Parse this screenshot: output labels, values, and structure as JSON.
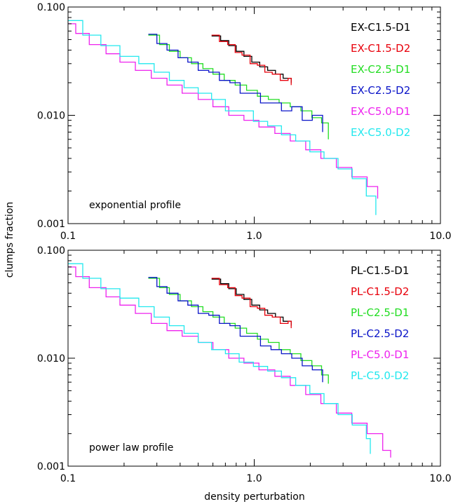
{
  "figure": {
    "xlabel": "density perturbation",
    "ylabel": "clumps fraction"
  },
  "chart_data": [
    {
      "type": "line",
      "step": true,
      "annotation": "exponential profile",
      "xscale": "log",
      "yscale": "log",
      "xlim": [
        0.1,
        10.0
      ],
      "ylim": [
        0.001,
        0.1
      ],
      "xticks": [
        {
          "v": 0.1,
          "label": "0.1"
        },
        {
          "v": 1.0,
          "label": "1.0"
        },
        {
          "v": 10.0,
          "label": "10.0"
        }
      ],
      "yticks": [
        {
          "v": 0.001,
          "label": "0.001"
        },
        {
          "v": 0.01,
          "label": "0.010"
        },
        {
          "v": 0.1,
          "label": "0.100"
        }
      ],
      "legend_position": "top-right",
      "series": [
        {
          "name": "EX-C1.5-D1",
          "color": "#000000",
          "x": [
            0.59,
            0.66,
            0.73,
            0.8,
            0.88,
            0.97,
            1.07,
            1.18,
            1.3,
            1.43,
            1.58
          ],
          "y": [
            0.054,
            0.049,
            0.044,
            0.039,
            0.035,
            0.031,
            0.028,
            0.026,
            0.024,
            0.022,
            0.02
          ]
        },
        {
          "name": "EX-C1.5-D2",
          "color": "#e8000b",
          "x": [
            0.59,
            0.65,
            0.72,
            0.79,
            0.86,
            0.95,
            1.04,
            1.14,
            1.25,
            1.38,
            1.52,
            1.58
          ],
          "y": [
            0.055,
            0.048,
            0.045,
            0.038,
            0.036,
            0.03,
            0.029,
            0.025,
            0.024,
            0.021,
            0.022,
            0.019
          ]
        },
        {
          "name": "EX-C2.5-D1",
          "color": "#22dd22",
          "x": [
            0.27,
            0.31,
            0.35,
            0.4,
            0.46,
            0.53,
            0.6,
            0.69,
            0.79,
            0.91,
            1.04,
            1.19,
            1.36,
            1.56,
            1.78,
            2.04,
            2.3,
            2.5
          ],
          "y": [
            0.055,
            0.045,
            0.039,
            0.034,
            0.03,
            0.027,
            0.024,
            0.021,
            0.019,
            0.017,
            0.015,
            0.014,
            0.013,
            0.012,
            0.011,
            0.0095,
            0.0085,
            0.006
          ]
        },
        {
          "name": "EX-C2.5-D2",
          "color": "#0a14c8",
          "x": [
            0.27,
            0.3,
            0.34,
            0.39,
            0.44,
            0.5,
            0.57,
            0.65,
            0.74,
            0.84,
            0.95,
            1.08,
            1.23,
            1.4,
            1.59,
            1.81,
            2.05,
            2.33
          ],
          "y": [
            0.056,
            0.046,
            0.04,
            0.034,
            0.031,
            0.026,
            0.025,
            0.021,
            0.02,
            0.016,
            0.016,
            0.013,
            0.013,
            0.011,
            0.012,
            0.009,
            0.01,
            0.007
          ]
        },
        {
          "name": "EX-C5.0-D1",
          "color": "#ee22ee",
          "x": [
            0.092,
            0.11,
            0.13,
            0.16,
            0.19,
            0.23,
            0.28,
            0.34,
            0.41,
            0.5,
            0.6,
            0.73,
            0.88,
            1.06,
            1.29,
            1.56,
            1.89,
            2.28,
            2.76,
            3.34,
            4.04,
            4.6
          ],
          "y": [
            0.07,
            0.057,
            0.045,
            0.037,
            0.031,
            0.026,
            0.022,
            0.019,
            0.016,
            0.014,
            0.012,
            0.01,
            0.009,
            0.0078,
            0.0068,
            0.0058,
            0.0048,
            0.004,
            0.0033,
            0.0027,
            0.0022,
            0.0017
          ]
        },
        {
          "name": "EX-C5.0-D2",
          "color": "#22e8ee",
          "x": [
            0.092,
            0.12,
            0.15,
            0.19,
            0.24,
            0.29,
            0.35,
            0.42,
            0.5,
            0.59,
            0.7,
            0.83,
            0.99,
            1.18,
            1.4,
            1.67,
            1.99,
            2.37,
            2.82,
            3.36,
            4.0,
            4.5
          ],
          "y": [
            0.075,
            0.055,
            0.044,
            0.035,
            0.03,
            0.025,
            0.021,
            0.018,
            0.016,
            0.014,
            0.011,
            0.011,
            0.0088,
            0.008,
            0.0066,
            0.0058,
            0.0046,
            0.004,
            0.0032,
            0.0026,
            0.0018,
            0.0012
          ]
        }
      ]
    },
    {
      "type": "line",
      "step": true,
      "annotation": "power law profile",
      "xscale": "log",
      "yscale": "log",
      "xlim": [
        0.1,
        10.0
      ],
      "ylim": [
        0.001,
        0.1
      ],
      "xticks": [
        {
          "v": 0.1,
          "label": "0.1"
        },
        {
          "v": 1.0,
          "label": "1.0"
        },
        {
          "v": 10.0,
          "label": "10.0"
        }
      ],
      "yticks": [
        {
          "v": 0.001,
          "label": "0.001"
        },
        {
          "v": 0.01,
          "label": "0.010"
        },
        {
          "v": 0.1,
          "label": "0.100"
        }
      ],
      "legend_position": "top-right",
      "series": [
        {
          "name": "PL-C1.5-D1",
          "color": "#000000",
          "x": [
            0.59,
            0.66,
            0.73,
            0.8,
            0.88,
            0.97,
            1.07,
            1.18,
            1.3,
            1.43,
            1.58
          ],
          "y": [
            0.054,
            0.049,
            0.044,
            0.039,
            0.035,
            0.031,
            0.028,
            0.026,
            0.024,
            0.022,
            0.02
          ]
        },
        {
          "name": "PL-C1.5-D2",
          "color": "#e8000b",
          "x": [
            0.59,
            0.65,
            0.72,
            0.79,
            0.86,
            0.95,
            1.04,
            1.14,
            1.25,
            1.38,
            1.52,
            1.58
          ],
          "y": [
            0.055,
            0.048,
            0.045,
            0.038,
            0.036,
            0.03,
            0.029,
            0.025,
            0.024,
            0.021,
            0.022,
            0.019
          ]
        },
        {
          "name": "PL-C2.5-D1",
          "color": "#22dd22",
          "x": [
            0.27,
            0.31,
            0.35,
            0.4,
            0.46,
            0.53,
            0.6,
            0.69,
            0.79,
            0.91,
            1.04,
            1.19,
            1.36,
            1.56,
            1.78,
            2.04,
            2.3,
            2.5
          ],
          "y": [
            0.055,
            0.045,
            0.039,
            0.034,
            0.03,
            0.027,
            0.024,
            0.021,
            0.019,
            0.017,
            0.015,
            0.014,
            0.012,
            0.011,
            0.0095,
            0.0085,
            0.007,
            0.0058
          ]
        },
        {
          "name": "PL-C2.5-D2",
          "color": "#0a14c8",
          "x": [
            0.27,
            0.3,
            0.34,
            0.39,
            0.44,
            0.5,
            0.57,
            0.65,
            0.74,
            0.84,
            0.95,
            1.08,
            1.23,
            1.4,
            1.59,
            1.81,
            2.05,
            2.33
          ],
          "y": [
            0.056,
            0.046,
            0.04,
            0.034,
            0.031,
            0.026,
            0.025,
            0.021,
            0.02,
            0.016,
            0.016,
            0.013,
            0.012,
            0.011,
            0.01,
            0.0085,
            0.0078,
            0.006
          ]
        },
        {
          "name": "PL-C5.0-D1",
          "color": "#ee22ee",
          "x": [
            0.092,
            0.11,
            0.13,
            0.16,
            0.19,
            0.23,
            0.28,
            0.34,
            0.41,
            0.5,
            0.6,
            0.73,
            0.88,
            1.06,
            1.29,
            1.56,
            1.89,
            2.28,
            2.76,
            3.34,
            4.04,
            4.9,
            5.4
          ],
          "y": [
            0.07,
            0.057,
            0.045,
            0.037,
            0.031,
            0.026,
            0.021,
            0.018,
            0.016,
            0.014,
            0.012,
            0.01,
            0.009,
            0.0078,
            0.0068,
            0.0056,
            0.0046,
            0.0038,
            0.0031,
            0.0025,
            0.002,
            0.0014,
            0.0012
          ]
        },
        {
          "name": "PL-C5.0-D2",
          "color": "#22e8ee",
          "x": [
            0.092,
            0.12,
            0.15,
            0.19,
            0.24,
            0.29,
            0.35,
            0.42,
            0.5,
            0.59,
            0.7,
            0.83,
            0.99,
            1.18,
            1.4,
            1.67,
            1.99,
            2.37,
            2.82,
            3.36,
            4.0,
            4.2
          ],
          "y": [
            0.075,
            0.055,
            0.044,
            0.036,
            0.03,
            0.024,
            0.02,
            0.017,
            0.014,
            0.012,
            0.011,
            0.0092,
            0.0084,
            0.0076,
            0.0066,
            0.0056,
            0.0047,
            0.0038,
            0.003,
            0.0024,
            0.0018,
            0.0013
          ]
        }
      ]
    }
  ]
}
